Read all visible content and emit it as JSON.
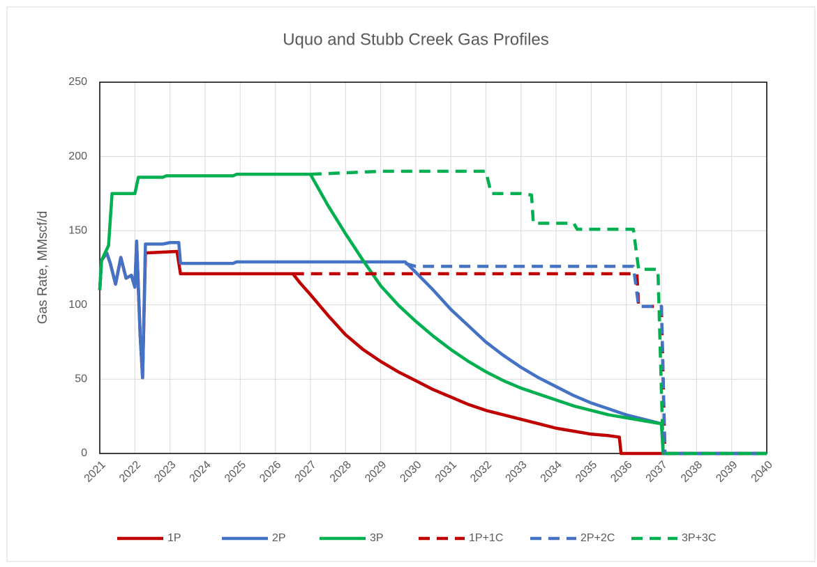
{
  "chart_data": {
    "type": "line",
    "title": "Uquo and Stubb Creek Gas Profiles",
    "y_label": "Gas Rate, MMscf/d",
    "xlim": [
      2021,
      2040
    ],
    "xticks": [
      2021,
      2022,
      2023,
      2024,
      2025,
      2026,
      2027,
      2028,
      2029,
      2030,
      2031,
      2032,
      2033,
      2034,
      2035,
      2036,
      2037,
      2038,
      2039,
      2040
    ],
    "ylim": [
      0,
      250
    ],
    "yticks": [
      0,
      50,
      100,
      150,
      200,
      250
    ],
    "grid": true,
    "legend": "bottom",
    "series": [
      {
        "name": "1P",
        "color": "#c00000",
        "dashed": false,
        "x": [
          2021,
          2021.05,
          2021.2,
          2021.3,
          2021.45,
          2021.6,
          2021.75,
          2021.9,
          2022.0,
          2022.05,
          2022.15,
          2022.22,
          2022.3,
          2023.2,
          2023.3,
          2026.5,
          2026.7,
          2027,
          2027.5,
          2028,
          2028.5,
          2029,
          2029.5,
          2030,
          2030.5,
          2031,
          2031.5,
          2032,
          2032.5,
          2033,
          2033.5,
          2034,
          2034.5,
          2035,
          2035.5,
          2035.8,
          2035.85,
          2040
        ],
        "values": [
          110,
          130,
          135,
          128,
          114,
          132,
          118,
          120,
          112,
          142,
          80,
          51,
          135,
          136,
          121,
          121,
          115,
          107,
          93,
          80,
          70,
          62,
          55,
          49,
          43,
          38,
          33,
          29,
          26,
          23,
          20,
          17,
          15,
          13,
          12,
          11,
          0,
          0
        ]
      },
      {
        "name": "2P",
        "color": "#4472c4",
        "dashed": false,
        "x": [
          2021,
          2021.05,
          2021.2,
          2021.3,
          2021.45,
          2021.6,
          2021.75,
          2021.9,
          2022.0,
          2022.05,
          2022.15,
          2022.22,
          2022.3,
          2022.8,
          2023,
          2023.25,
          2023.3,
          2024.8,
          2024.9,
          2029.7,
          2030,
          2030.5,
          2031,
          2031.5,
          2032,
          2032.5,
          2033,
          2033.5,
          2034,
          2034.5,
          2035,
          2035.5,
          2036,
          2036.5,
          2037,
          2037.05,
          2040
        ],
        "values": [
          110,
          130,
          135,
          128,
          114,
          132,
          118,
          120,
          112,
          143,
          80,
          51,
          141,
          141,
          142,
          142,
          128,
          128,
          129,
          129,
          122,
          110,
          97,
          86,
          75,
          66,
          58,
          51,
          45,
          39,
          34,
          30,
          26,
          23,
          20,
          0,
          0
        ]
      },
      {
        "name": "3P",
        "color": "#00b050",
        "dashed": false,
        "x": [
          2021,
          2021.05,
          2021.25,
          2021.35,
          2022,
          2022.1,
          2022.8,
          2022.9,
          2024.8,
          2024.9,
          2027,
          2027.5,
          2028,
          2028.5,
          2029,
          2029.5,
          2030,
          2030.5,
          2031,
          2031.5,
          2032,
          2032.5,
          2033,
          2033.5,
          2034,
          2034.5,
          2035,
          2035.5,
          2036,
          2036.5,
          2037,
          2037.05,
          2040
        ],
        "values": [
          110,
          130,
          140,
          175,
          175,
          186,
          186,
          187,
          187,
          188,
          188,
          167,
          148,
          130,
          113,
          100,
          89,
          79,
          70,
          62,
          55,
          49,
          44,
          40,
          36,
          32,
          29,
          26,
          24,
          22,
          20,
          0,
          0
        ]
      },
      {
        "name": "1P+1C",
        "color": "#c00000",
        "dashed": true,
        "x": [
          2026.5,
          2036.3,
          2036.35,
          2037,
          2037.1,
          2040
        ],
        "values": [
          121,
          121,
          99,
          99,
          0,
          0
        ]
      },
      {
        "name": "2P+2C",
        "color": "#4472c4",
        "dashed": true,
        "x": [
          2029.7,
          2030,
          2036.2,
          2036.35,
          2037,
          2037.1,
          2040
        ],
        "values": [
          128,
          126,
          126,
          99,
          99,
          0,
          0
        ]
      },
      {
        "name": "3P+3C",
        "color": "#00b050",
        "dashed": true,
        "x": [
          2027,
          2028,
          2029,
          2032,
          2032.15,
          2033,
          2033.3,
          2033.35,
          2034.5,
          2034.6,
          2036.2,
          2036.35,
          2036.9,
          2037.05,
          2040
        ],
        "values": [
          188,
          189,
          190,
          190,
          175,
          175,
          174,
          155,
          155,
          151,
          151,
          124,
          124,
          0,
          0
        ]
      }
    ]
  }
}
